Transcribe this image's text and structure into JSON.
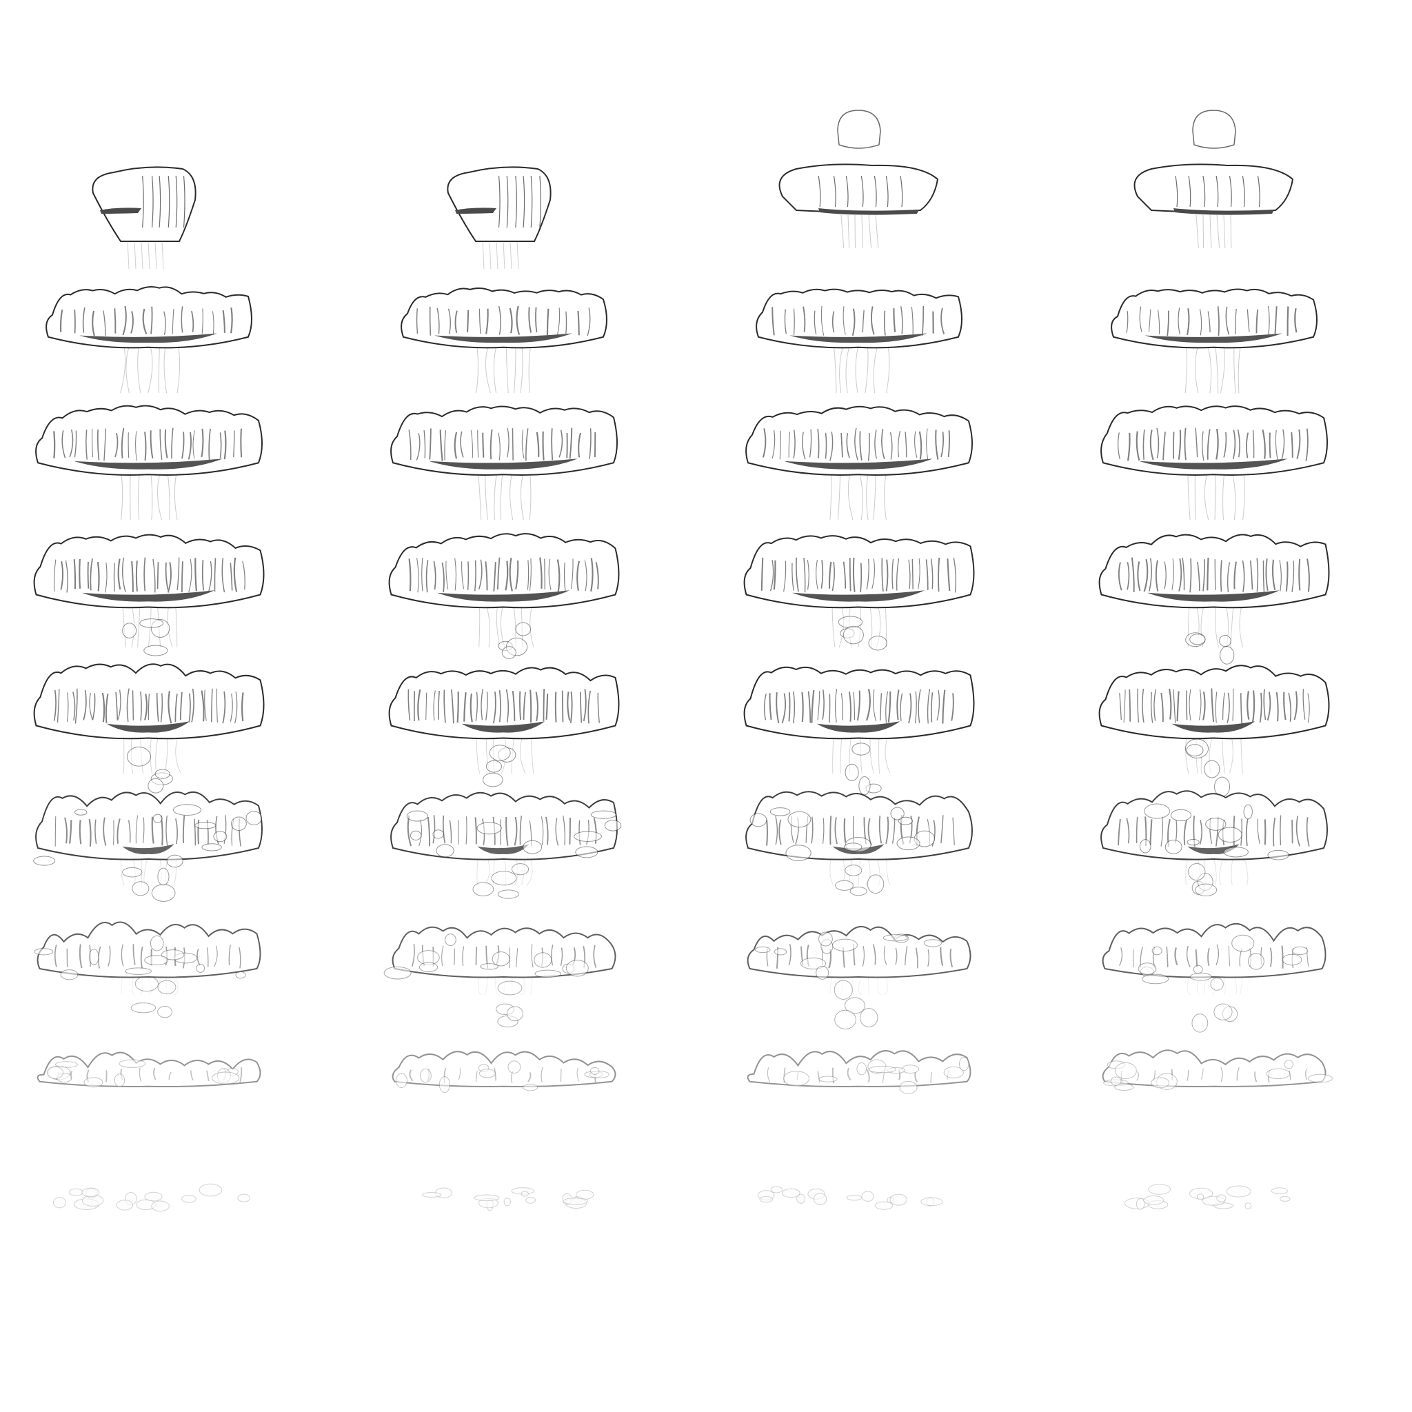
{
  "sprite_sheet": {
    "columns": 4,
    "rows": 9,
    "palette": {
      "background": "#ffffff",
      "outline": "#2a2a2a",
      "shadow": "#4a4a4a",
      "gill": "#6a6a6a",
      "smoke_fill": "#f7f7f7"
    },
    "frames": [
      {
        "col": 0,
        "row": 0,
        "stage": "rise-small",
        "tiny": false
      },
      {
        "col": 1,
        "row": 0,
        "stage": "rise-small",
        "tiny": false
      },
      {
        "col": 2,
        "row": 0,
        "stage": "rise-small",
        "tiny": true
      },
      {
        "col": 3,
        "row": 0,
        "stage": "rise-small",
        "tiny": true
      },
      {
        "col": 0,
        "row": 1,
        "stage": "cap-expand",
        "tiny": false
      },
      {
        "col": 1,
        "row": 1,
        "stage": "cap-expand",
        "tiny": false
      },
      {
        "col": 2,
        "row": 1,
        "stage": "cap-expand",
        "tiny": false
      },
      {
        "col": 3,
        "row": 1,
        "stage": "cap-expand",
        "tiny": false
      },
      {
        "col": 0,
        "row": 2,
        "stage": "cap-full",
        "tiny": false
      },
      {
        "col": 1,
        "row": 2,
        "stage": "cap-full",
        "tiny": false
      },
      {
        "col": 2,
        "row": 2,
        "stage": "cap-full",
        "tiny": false
      },
      {
        "col": 3,
        "row": 2,
        "stage": "cap-full",
        "tiny": false
      },
      {
        "col": 0,
        "row": 3,
        "stage": "cap-billow",
        "tiny": false
      },
      {
        "col": 1,
        "row": 3,
        "stage": "cap-billow",
        "tiny": false
      },
      {
        "col": 2,
        "row": 3,
        "stage": "cap-billow",
        "tiny": false
      },
      {
        "col": 3,
        "row": 3,
        "stage": "cap-billow",
        "tiny": false
      },
      {
        "col": 0,
        "row": 4,
        "stage": "cap-droop",
        "tiny": false
      },
      {
        "col": 1,
        "row": 4,
        "stage": "cap-droop",
        "tiny": false
      },
      {
        "col": 2,
        "row": 4,
        "stage": "cap-droop",
        "tiny": false
      },
      {
        "col": 3,
        "row": 4,
        "stage": "cap-droop",
        "tiny": false
      },
      {
        "col": 0,
        "row": 5,
        "stage": "dissipate-1",
        "tiny": false
      },
      {
        "col": 1,
        "row": 5,
        "stage": "dissipate-1",
        "tiny": false
      },
      {
        "col": 2,
        "row": 5,
        "stage": "dissipate-1",
        "tiny": false
      },
      {
        "col": 3,
        "row": 5,
        "stage": "dissipate-1",
        "tiny": false
      },
      {
        "col": 0,
        "row": 6,
        "stage": "dissipate-2",
        "tiny": false
      },
      {
        "col": 1,
        "row": 6,
        "stage": "dissipate-2",
        "tiny": false
      },
      {
        "col": 2,
        "row": 6,
        "stage": "dissipate-2",
        "tiny": false
      },
      {
        "col": 3,
        "row": 6,
        "stage": "dissipate-2",
        "tiny": false
      },
      {
        "col": 0,
        "row": 7,
        "stage": "dissipate-3",
        "tiny": false
      },
      {
        "col": 1,
        "row": 7,
        "stage": "dissipate-3",
        "tiny": false
      },
      {
        "col": 2,
        "row": 7,
        "stage": "dissipate-3",
        "tiny": false
      },
      {
        "col": 3,
        "row": 7,
        "stage": "dissipate-3",
        "tiny": false
      },
      {
        "col": 0,
        "row": 8,
        "stage": "remnants",
        "tiny": false
      },
      {
        "col": 1,
        "row": 8,
        "stage": "remnants",
        "tiny": false
      },
      {
        "col": 2,
        "row": 8,
        "stage": "remnants",
        "tiny": false
      },
      {
        "col": 3,
        "row": 8,
        "stage": "remnants",
        "tiny": false
      }
    ]
  }
}
